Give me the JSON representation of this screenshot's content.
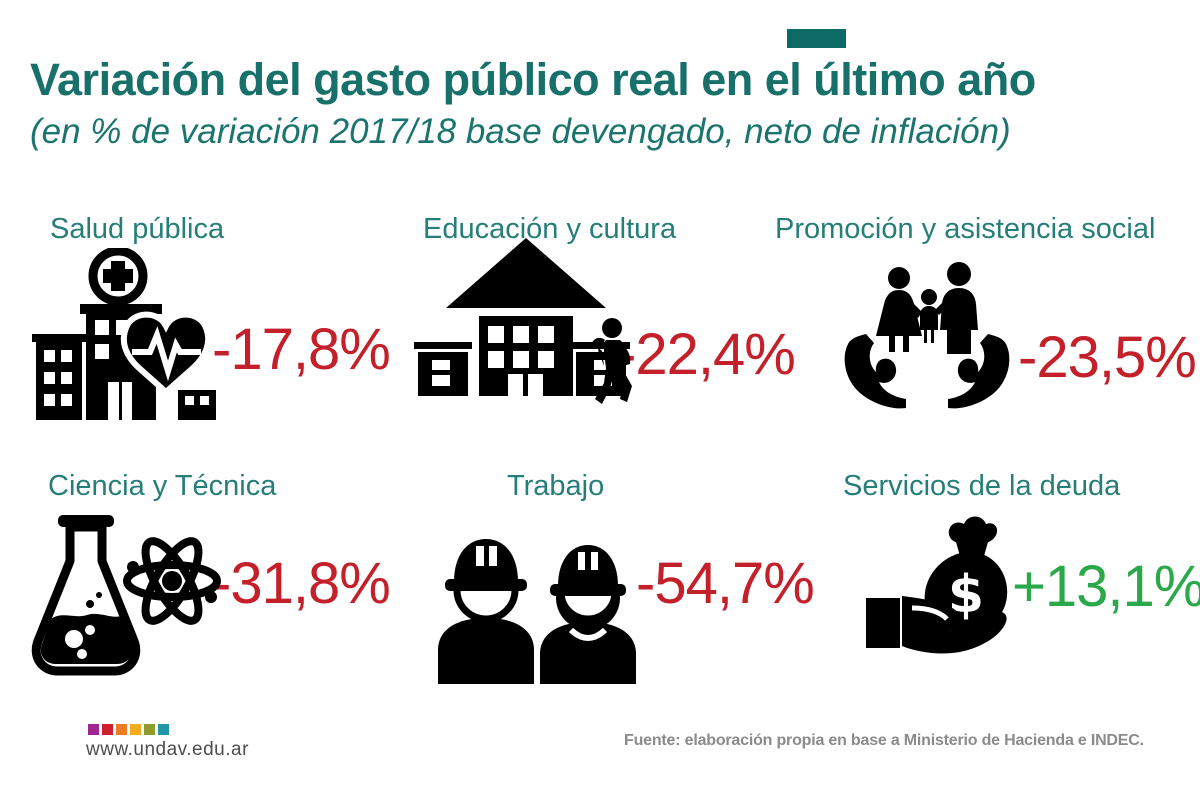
{
  "header": {
    "title": "Variación del gasto público real en el último año",
    "subtitle": "(en % de variación 2017/18 base devengado, neto de inflación)"
  },
  "categories": [
    {
      "label": "Salud pública",
      "value": "-17,8%",
      "trend": "negative",
      "icon": "hospital-icon"
    },
    {
      "label": "Educación y cultura",
      "value": "-22,4%",
      "trend": "negative",
      "icon": "school-student-icon"
    },
    {
      "label": "Promoción y asistencia social",
      "value": "-23,5%",
      "trend": "negative",
      "icon": "family-in-hands-icon"
    },
    {
      "label": "Ciencia y Técnica",
      "value": "-31,8%",
      "trend": "negative",
      "icon": "flask-atom-icon"
    },
    {
      "label": "Trabajo",
      "value": "-54,7%",
      "trend": "negative",
      "icon": "construction-workers-icon"
    },
    {
      "label": "Servicios de la deuda",
      "value": "+13,1%",
      "trend": "positive",
      "icon": "money-bag-hand-icon"
    }
  ],
  "footer": {
    "website": "www.undav.edu.ar",
    "source": "Fuente: elaboración propia en base a Ministerio de Hacienda e INDEC.",
    "logo_colors": [
      "#a0268e",
      "#d01f2f",
      "#ef7c23",
      "#f0ad1f",
      "#8e9c2b",
      "#1f97a5"
    ]
  },
  "colors": {
    "title_teal": "#17706a",
    "label_teal": "#257e77",
    "negative_red": "#c3202a",
    "positive_green": "#2ba84a",
    "icon_black": "#000000",
    "source_gray": "#8b8b8b"
  },
  "chart_data": {
    "type": "table",
    "title": "Variación del gasto público real en el último año",
    "subtitle": "(en % de variación 2017/18 base devengado, neto de inflación)",
    "categories": [
      "Salud pública",
      "Educación y cultura",
      "Promoción y asistencia social",
      "Ciencia y Técnica",
      "Trabajo",
      "Servicios de la deuda"
    ],
    "values": [
      -17.8,
      -22.4,
      -23.5,
      -31.8,
      -54.7,
      13.1
    ],
    "unit": "%",
    "value_labels": [
      "-17,8%",
      "-22,4%",
      "-23,5%",
      "-31,8%",
      "-54,7%",
      "+13,1%"
    ],
    "source": "Fuente: elaboración propia en base a Ministerio de Hacienda e INDEC."
  }
}
